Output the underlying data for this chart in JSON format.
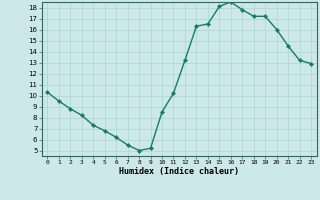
{
  "x": [
    0,
    1,
    2,
    3,
    4,
    5,
    6,
    7,
    8,
    9,
    10,
    11,
    12,
    13,
    14,
    15,
    16,
    17,
    18,
    19,
    20,
    21,
    22,
    23
  ],
  "y": [
    10.3,
    9.5,
    8.8,
    8.2,
    7.3,
    6.8,
    6.2,
    5.5,
    5.0,
    5.2,
    8.5,
    10.2,
    13.2,
    16.3,
    16.5,
    18.1,
    18.5,
    17.8,
    17.2,
    17.2,
    16.0,
    14.5,
    13.2,
    12.9
  ],
  "xlabel": "Humidex (Indice chaleur)",
  "ylim": [
    4.5,
    18.5
  ],
  "xlim": [
    -0.5,
    23.5
  ],
  "yticks": [
    5,
    6,
    7,
    8,
    9,
    10,
    11,
    12,
    13,
    14,
    15,
    16,
    17,
    18
  ],
  "xticks": [
    0,
    1,
    2,
    3,
    4,
    5,
    6,
    7,
    8,
    9,
    10,
    11,
    12,
    13,
    14,
    15,
    16,
    17,
    18,
    19,
    20,
    21,
    22,
    23
  ],
  "line_color": "#1a7a6a",
  "marker_color": "#1a7a6a",
  "bg_color": "#cce8e8",
  "grid_color": "#aad4d4",
  "axis_bg": "#cce8e8"
}
